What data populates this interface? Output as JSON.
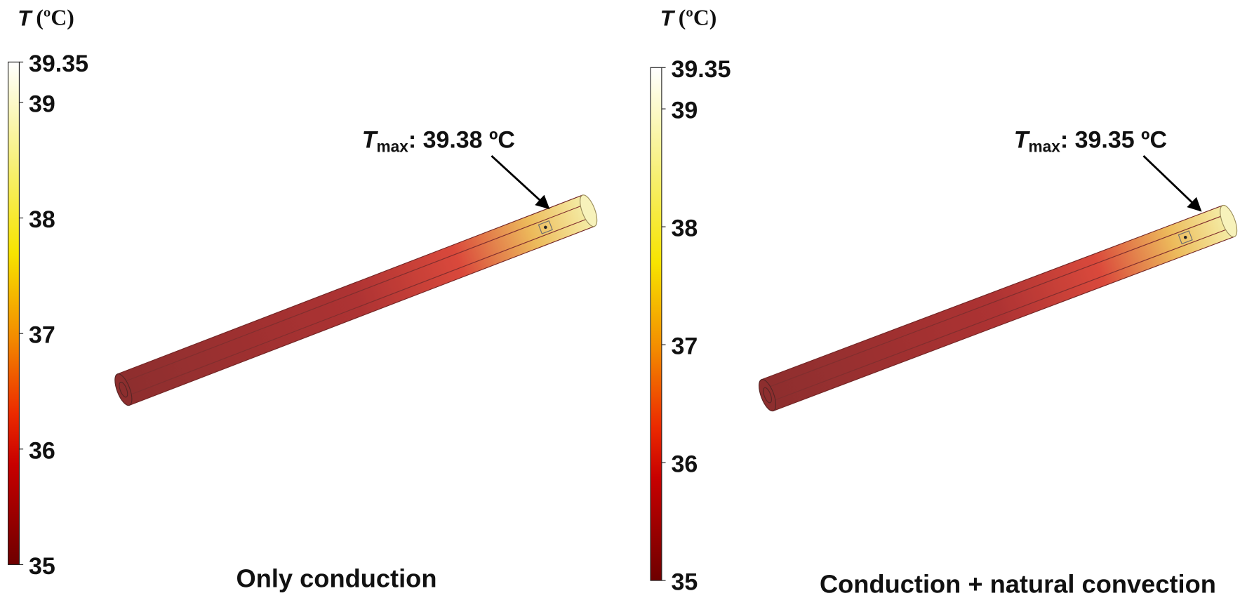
{
  "panels": [
    {
      "colorbar": {
        "title_symbol": "T",
        "title_unit": "(ºC)",
        "range": [
          35,
          39.35
        ],
        "ticks": [
          35,
          36,
          37,
          38,
          39,
          39.35
        ]
      },
      "annotation": {
        "symbol": "T",
        "subscript": "max",
        "text": ": 39.38 ºC"
      },
      "caption": "Only conduction"
    },
    {
      "colorbar": {
        "title_symbol": "T",
        "title_unit": "(ºC)",
        "range": [
          35,
          39.35
        ],
        "ticks": [
          35,
          36,
          37,
          38,
          39,
          39.35
        ]
      },
      "annotation": {
        "symbol": "T",
        "subscript": "max",
        "text": ": 39.35 ºC"
      },
      "caption": "Conduction + natural convection"
    }
  ]
}
